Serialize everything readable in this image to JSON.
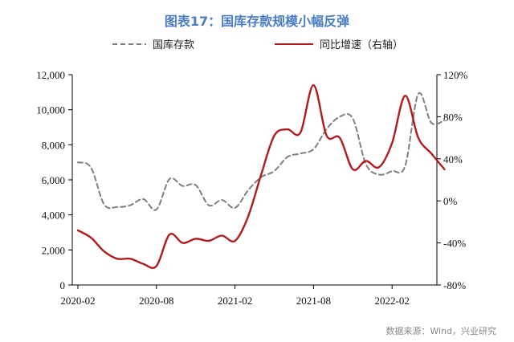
{
  "chart_data": {
    "type": "line",
    "title": "图表17：国库存款规模小幅反弹",
    "source": "数据来源：Wind，兴业研究",
    "colors": {
      "title": "#4a7cc3",
      "left_series": "#7f7f7f",
      "right_series": "#b01c1c",
      "axis": "#000000"
    },
    "x_tick_labels": [
      "2020-02",
      "2020-08",
      "2021-02",
      "2021-08",
      "2022-02"
    ],
    "left_axis": {
      "ylim": [
        0,
        12000
      ],
      "ticks": [
        "0",
        "2,000",
        "4,000",
        "6,000",
        "8,000",
        "10,000",
        "12,000"
      ]
    },
    "right_axis": {
      "ylim": [
        -80,
        120
      ],
      "ticks": [
        "-80%",
        "-40%",
        "0%",
        "40%",
        "80%",
        "120%"
      ]
    },
    "series": [
      {
        "name": "国库存款",
        "axis": "left",
        "style": "dashed",
        "points": [
          [
            "2020-02",
            7000
          ],
          [
            "2020-03",
            6700
          ],
          [
            "2020-04",
            4600
          ],
          [
            "2020-05",
            4450
          ],
          [
            "2020-06",
            4550
          ],
          [
            "2020-07",
            4900
          ],
          [
            "2020-08",
            4300
          ],
          [
            "2020-09",
            6050
          ],
          [
            "2020-10",
            5650
          ],
          [
            "2020-11",
            5700
          ],
          [
            "2020-12",
            4550
          ],
          [
            "2021-01",
            4850
          ],
          [
            "2021-02",
            4400
          ],
          [
            "2021-03",
            5400
          ],
          [
            "2021-04",
            6150
          ],
          [
            "2021-05",
            6500
          ],
          [
            "2021-06",
            7300
          ],
          [
            "2021-07",
            7500
          ],
          [
            "2021-08",
            7750
          ],
          [
            "2021-09",
            8900
          ],
          [
            "2021-10",
            9600
          ],
          [
            "2021-11",
            9500
          ],
          [
            "2021-12",
            6900
          ],
          [
            "2022-01",
            6300
          ],
          [
            "2022-02",
            6500
          ],
          [
            "2022-03",
            6800
          ],
          [
            "2022-04",
            10900
          ],
          [
            "2022-05",
            9250
          ],
          [
            "2022-06",
            9400
          ]
        ]
      },
      {
        "name": "同比增速（右轴）",
        "axis": "right",
        "style": "solid",
        "points": [
          [
            "2020-02",
            -28
          ],
          [
            "2020-03",
            -35
          ],
          [
            "2020-04",
            -48
          ],
          [
            "2020-05",
            -55
          ],
          [
            "2020-06",
            -55
          ],
          [
            "2020-07",
            -60
          ],
          [
            "2020-08",
            -62
          ],
          [
            "2020-09",
            -32
          ],
          [
            "2020-10",
            -40
          ],
          [
            "2020-11",
            -36
          ],
          [
            "2020-12",
            -38
          ],
          [
            "2021-01",
            -33
          ],
          [
            "2021-02",
            -38
          ],
          [
            "2021-03",
            -15
          ],
          [
            "2021-04",
            25
          ],
          [
            "2021-05",
            62
          ],
          [
            "2021-06",
            68
          ],
          [
            "2021-07",
            65
          ],
          [
            "2021-08",
            110
          ],
          [
            "2021-09",
            62
          ],
          [
            "2021-10",
            60
          ],
          [
            "2021-11",
            30
          ],
          [
            "2021-12",
            38
          ],
          [
            "2022-01",
            32
          ],
          [
            "2022-02",
            55
          ],
          [
            "2022-03",
            100
          ],
          [
            "2022-04",
            60
          ],
          [
            "2022-05",
            45
          ],
          [
            "2022-06",
            30
          ]
        ]
      }
    ]
  }
}
